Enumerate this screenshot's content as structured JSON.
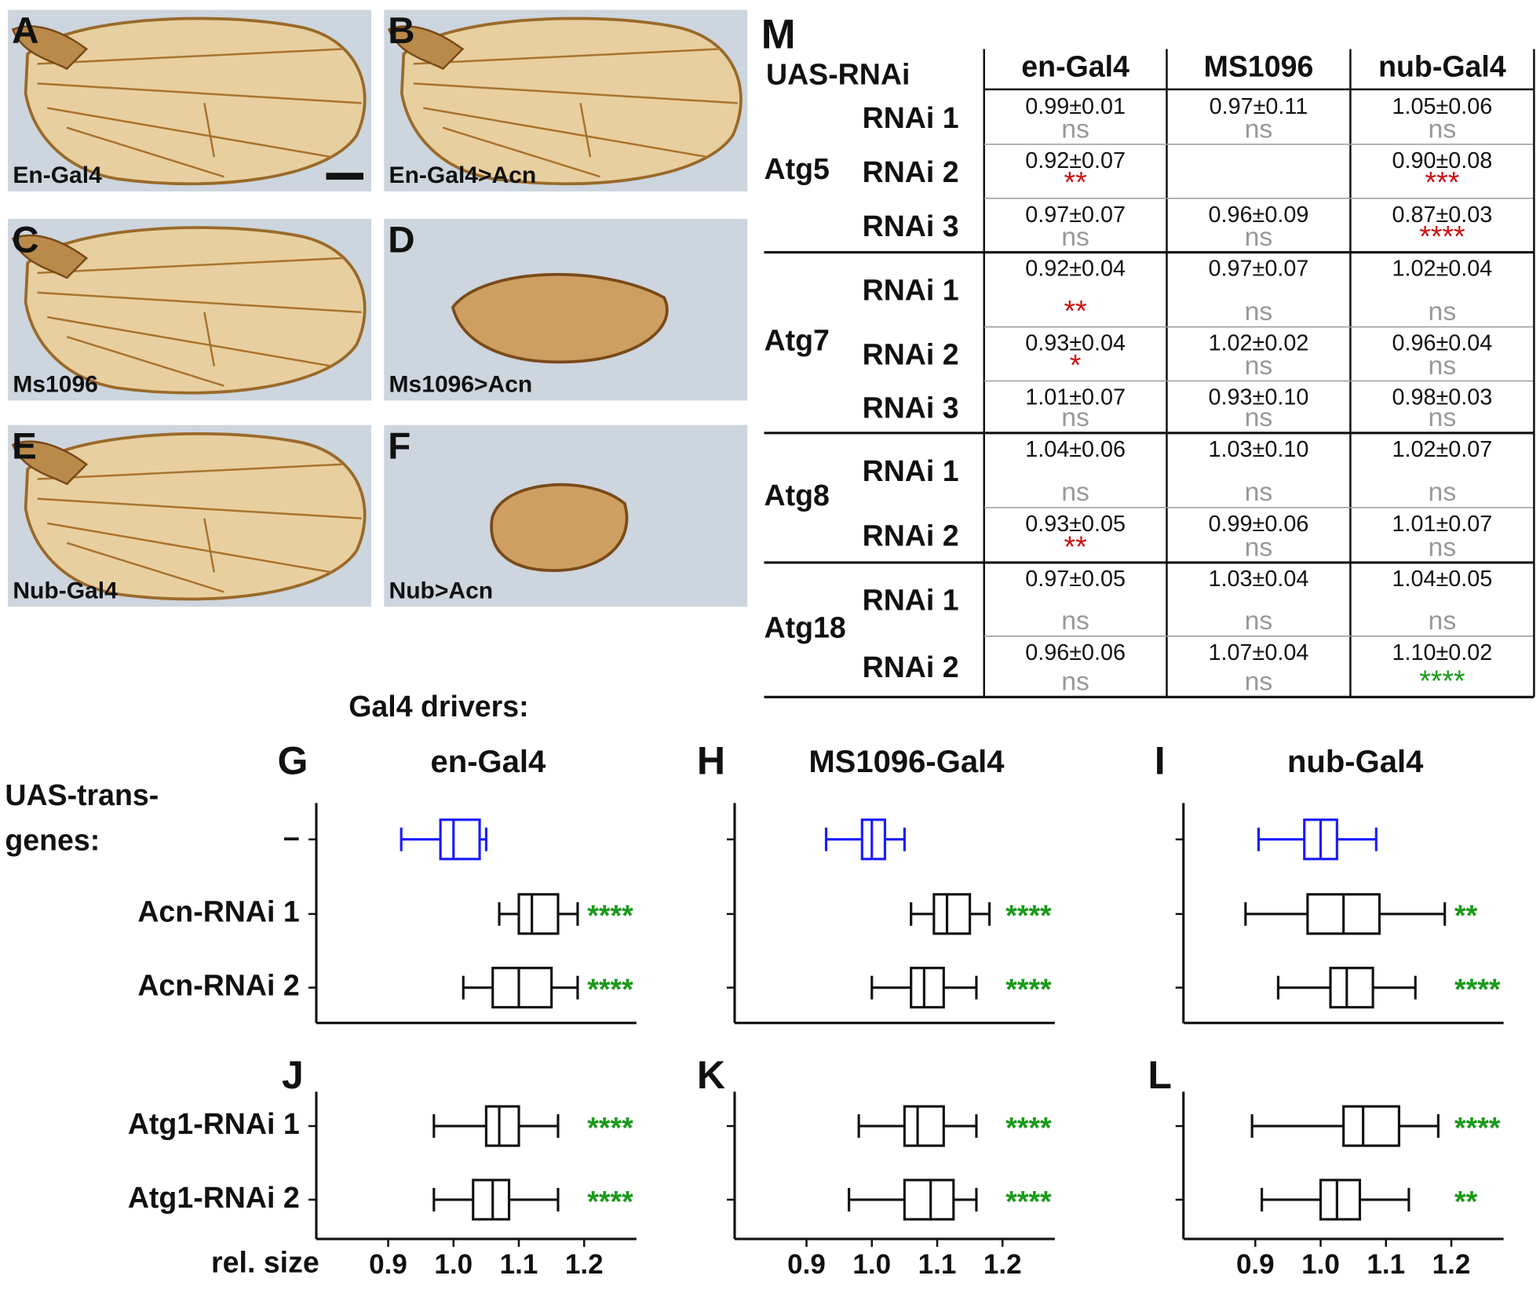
{
  "wing_panels": [
    {
      "letter": "A",
      "caption": "En-Gal4"
    },
    {
      "letter": "B",
      "caption": "En-Gal4>Acn"
    },
    {
      "letter": "C",
      "caption": "Ms1096"
    },
    {
      "letter": "D",
      "caption": "Ms1096>Acn"
    },
    {
      "letter": "E",
      "caption": "Nub-Gal4"
    },
    {
      "letter": "F",
      "caption": "Nub>Acn"
    }
  ],
  "table": {
    "label": "M",
    "header": [
      "UAS-RNAi",
      "en-Gal4",
      "MS1096",
      "nub-Gal4"
    ],
    "groups": [
      {
        "gene": "Atg5",
        "rows": [
          {
            "rnai": "RNAi 1",
            "cells": [
              {
                "value": "0.99±0.01",
                "sig": "ns",
                "color": "#999999"
              },
              {
                "value": "0.97±0.11",
                "sig": "ns",
                "color": "#999999"
              },
              {
                "value": "1.05±0.06",
                "sig": "ns",
                "color": "#999999"
              }
            ]
          },
          {
            "rnai": "RNAi 2",
            "cells": [
              {
                "value": "0.92±0.07",
                "sig": "**",
                "color": "#cc1111"
              },
              null,
              {
                "value": "0.90±0.08",
                "sig": "***",
                "color": "#cc1111"
              }
            ]
          },
          {
            "rnai": "RNAi 3",
            "cells": [
              {
                "value": "0.97±0.07",
                "sig": "ns",
                "color": "#999999"
              },
              {
                "value": "0.96±0.09",
                "sig": "ns",
                "color": "#999999"
              },
              {
                "value": "0.87±0.03",
                "sig": "****",
                "color": "#cc1111"
              }
            ]
          }
        ]
      },
      {
        "gene": "Atg7",
        "rows": [
          {
            "rnai": "RNAi 1",
            "cells": [
              {
                "value": "0.92±0.04",
                "sig": "**",
                "color": "#cc1111"
              },
              {
                "value": "0.97±0.07",
                "sig": "ns",
                "color": "#999999"
              },
              {
                "value": "1.02±0.04",
                "sig": "ns",
                "color": "#999999"
              }
            ]
          },
          {
            "rnai": "RNAi 2",
            "cells": [
              {
                "value": "0.93±0.04",
                "sig": "*",
                "color": "#cc1111"
              },
              {
                "value": "1.02±0.02",
                "sig": "ns",
                "color": "#999999"
              },
              {
                "value": "0.96±0.04",
                "sig": "ns",
                "color": "#999999"
              }
            ]
          },
          {
            "rnai": "RNAi 3",
            "cells": [
              {
                "value": "1.01±0.07",
                "sig": "ns",
                "color": "#999999"
              },
              {
                "value": "0.93±0.10",
                "sig": "ns",
                "color": "#999999"
              },
              {
                "value": "0.98±0.03",
                "sig": "ns",
                "color": "#999999"
              }
            ]
          }
        ]
      },
      {
        "gene": "Atg8",
        "rows": [
          {
            "rnai": "RNAi 1",
            "cells": [
              {
                "value": "1.04±0.06",
                "sig": "ns",
                "color": "#999999"
              },
              {
                "value": "1.03±0.10",
                "sig": "ns",
                "color": "#999999"
              },
              {
                "value": "1.02±0.07",
                "sig": "ns",
                "color": "#999999"
              }
            ]
          },
          {
            "rnai": "RNAi 2",
            "cells": [
              {
                "value": "0.93±0.05",
                "sig": "**",
                "color": "#cc1111"
              },
              {
                "value": "0.99±0.06",
                "sig": "ns",
                "color": "#999999"
              },
              {
                "value": "1.01±0.07",
                "sig": "ns",
                "color": "#999999"
              }
            ]
          }
        ]
      },
      {
        "gene": "Atg18",
        "rows": [
          {
            "rnai": "RNAi 1",
            "cells": [
              {
                "value": "0.97±0.05",
                "sig": "ns",
                "color": "#999999"
              },
              {
                "value": "1.03±0.04",
                "sig": "ns",
                "color": "#999999"
              },
              {
                "value": "1.04±0.05",
                "sig": "ns",
                "color": "#999999"
              }
            ]
          },
          {
            "rnai": "RNAi 2",
            "cells": [
              {
                "value": "0.96±0.06",
                "sig": "ns",
                "color": "#999999"
              },
              {
                "value": "1.07±0.04",
                "sig": "ns",
                "color": "#999999"
              },
              {
                "value": "1.10±0.02",
                "sig": "****",
                "color": "#1a9a1a"
              }
            ]
          }
        ]
      }
    ]
  },
  "headers": {
    "drivers": "Gal4 drivers:",
    "transgenes": [
      "UAS-trans-",
      "genes:"
    ]
  },
  "chart_data": [
    {
      "type": "box",
      "label": "G",
      "title": "en-Gal4",
      "categories": [
        "–",
        "Acn-RNAi 1",
        "Acn-RNAi 2"
      ],
      "xlim": [
        0.79,
        1.28
      ],
      "sig_color": "#1a9a1a",
      "boxes": [
        {
          "whislo": 0.92,
          "q1": 0.98,
          "med": 1.0,
          "q3": 1.04,
          "whishi": 1.05,
          "color": "#1a1aff"
        },
        {
          "whislo": 1.07,
          "q1": 1.1,
          "med": 1.12,
          "q3": 1.16,
          "whishi": 1.19,
          "color": "#111111",
          "sig": "****"
        },
        {
          "whislo": 1.015,
          "q1": 1.06,
          "med": 1.1,
          "q3": 1.15,
          "whishi": 1.19,
          "color": "#111111",
          "sig": "****"
        }
      ]
    },
    {
      "type": "box",
      "label": "H",
      "title": "MS1096-Gal4",
      "xlim": [
        0.79,
        1.28
      ],
      "sig_color": "#1a9a1a",
      "boxes": [
        {
          "whislo": 0.93,
          "q1": 0.985,
          "med": 1.0,
          "q3": 1.02,
          "whishi": 1.05,
          "color": "#1a1aff"
        },
        {
          "whislo": 1.06,
          "q1": 1.095,
          "med": 1.115,
          "q3": 1.15,
          "whishi": 1.18,
          "color": "#111111",
          "sig": "****"
        },
        {
          "whislo": 1.0,
          "q1": 1.06,
          "med": 1.08,
          "q3": 1.11,
          "whishi": 1.16,
          "color": "#111111",
          "sig": "****"
        }
      ]
    },
    {
      "type": "box",
      "label": "I",
      "title": "nub-Gal4",
      "xlim": [
        0.79,
        1.28
      ],
      "sig_color": "#1a9a1a",
      "boxes": [
        {
          "whislo": 0.905,
          "q1": 0.975,
          "med": 1.0,
          "q3": 1.025,
          "whishi": 1.085,
          "color": "#1a1aff"
        },
        {
          "whislo": 0.885,
          "q1": 0.98,
          "med": 1.035,
          "q3": 1.09,
          "whishi": 1.19,
          "color": "#111111",
          "sig": "**"
        },
        {
          "whislo": 0.935,
          "q1": 1.015,
          "med": 1.04,
          "q3": 1.08,
          "whishi": 1.145,
          "color": "#111111",
          "sig": "****"
        }
      ]
    },
    {
      "type": "box",
      "label": "J",
      "categories": [
        "Atg1-RNAi 1",
        "Atg1-RNAi 2"
      ],
      "xlim": [
        0.79,
        1.28
      ],
      "xlabel": "rel. size",
      "sig_color": "#1a9a1a",
      "xticks": [
        0.9,
        {
          "value": 1.0,
          "label": "1.0"
        },
        1.1,
        1.2
      ],
      "boxes": [
        {
          "whislo": 0.97,
          "q1": 1.05,
          "med": 1.07,
          "q3": 1.1,
          "whishi": 1.16,
          "color": "#111111",
          "sig": "****"
        },
        {
          "whislo": 0.97,
          "q1": 1.03,
          "med": 1.06,
          "q3": 1.085,
          "whishi": 1.16,
          "color": "#111111",
          "sig": "****"
        }
      ]
    },
    {
      "type": "box",
      "label": "K",
      "xlim": [
        0.79,
        1.28
      ],
      "sig_color": "#1a9a1a",
      "xticks": [
        0.9,
        {
          "value": 1.0,
          "label": "1.0"
        },
        1.1,
        1.2
      ],
      "boxes": [
        {
          "whislo": 0.98,
          "q1": 1.05,
          "med": 1.07,
          "q3": 1.11,
          "whishi": 1.16,
          "color": "#111111",
          "sig": "****"
        },
        {
          "whislo": 0.965,
          "q1": 1.05,
          "med": 1.09,
          "q3": 1.125,
          "whishi": 1.16,
          "color": "#111111",
          "sig": "****"
        }
      ]
    },
    {
      "type": "box",
      "label": "L",
      "xlim": [
        0.79,
        1.28
      ],
      "sig_color": "#1a9a1a",
      "xticks": [
        0.9,
        {
          "value": 1.0,
          "label": "1.0"
        },
        1.1,
        1.2
      ],
      "boxes": [
        {
          "whislo": 0.895,
          "q1": 1.035,
          "med": 1.065,
          "q3": 1.12,
          "whishi": 1.18,
          "color": "#111111",
          "sig": "****"
        },
        {
          "whislo": 0.91,
          "q1": 1.0,
          "med": 1.025,
          "q3": 1.06,
          "whishi": 1.135,
          "color": "#111111",
          "sig": "**"
        }
      ]
    }
  ]
}
